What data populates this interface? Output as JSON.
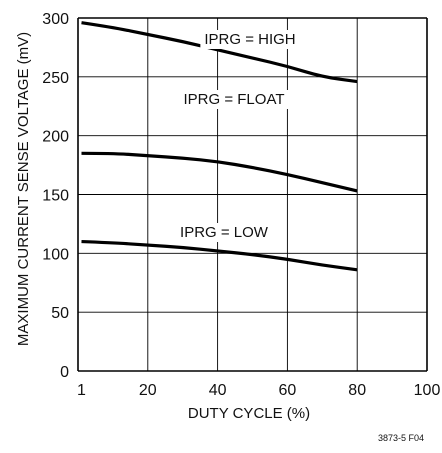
{
  "chart_data": {
    "type": "line",
    "xlabel": "DUTY CYCLE (%)",
    "ylabel": "MAXIMUM CURRENT SENSE VOLTAGE (mV)",
    "xlim": [
      0,
      100
    ],
    "ylim": [
      0,
      300
    ],
    "x_ticks": [
      "1",
      "20",
      "40",
      "60",
      "80",
      "100"
    ],
    "y_ticks": [
      "0",
      "50",
      "100",
      "150",
      "200",
      "250",
      "300"
    ],
    "grid": true,
    "series": [
      {
        "name": "IPRG = HIGH",
        "x": [
          1,
          10,
          20,
          30,
          40,
          50,
          60,
          70,
          80
        ],
        "y": [
          296,
          292,
          286,
          280,
          273,
          266,
          259,
          250,
          246
        ]
      },
      {
        "name": "IPRG = FLOAT",
        "x": [
          1,
          10,
          20,
          30,
          40,
          50,
          60,
          70,
          80
        ],
        "y": [
          185,
          185,
          183,
          181,
          178,
          173,
          167,
          160,
          153
        ]
      },
      {
        "name": "IPRG = LOW",
        "x": [
          1,
          10,
          20,
          30,
          40,
          50,
          60,
          70,
          80
        ],
        "y": [
          110,
          109,
          107,
          105,
          102,
          99,
          95,
          90,
          86
        ]
      }
    ]
  },
  "figure_code": "3873-5 F04"
}
